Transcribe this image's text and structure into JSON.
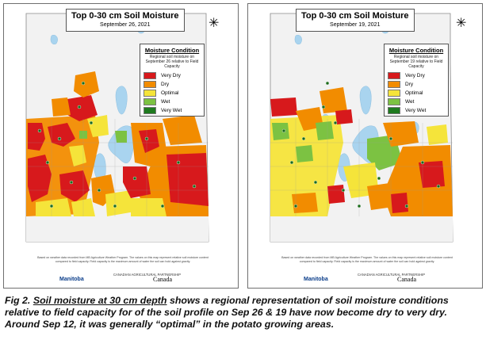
{
  "colors": {
    "very_dry": "#d7191c",
    "dry": "#f28c00",
    "optimal": "#f5e43a",
    "wet": "#7cc242",
    "very_wet": "#1e7a1e",
    "water": "#a9d4ef",
    "land": "#f2f2f2"
  },
  "maps": [
    {
      "title": "Top 0-30 cm Soil Moisture",
      "date": "September 26, 2021",
      "legend": {
        "heading": "Moisture Condition",
        "description": "Regional soil moisture on September 26 relative to Field Capacity",
        "items": [
          {
            "label": "Very Dry",
            "color": "#d7191c"
          },
          {
            "label": "Dry",
            "color": "#f28c00"
          },
          {
            "label": "Optimal",
            "color": "#f5e43a"
          },
          {
            "label": "Wet",
            "color": "#7cc242"
          },
          {
            "label": "Very Wet",
            "color": "#1e7a1e"
          }
        ]
      }
    },
    {
      "title": "Top 0-30 cm Soil Moisture",
      "date": "September 19, 2021",
      "legend": {
        "heading": "Moisture Condition",
        "description": "Regional soil moisture on September 19 relative to Field Capacity",
        "items": [
          {
            "label": "Very Dry",
            "color": "#d7191c"
          },
          {
            "label": "Dry",
            "color": "#f28c00"
          },
          {
            "label": "Optimal",
            "color": "#f5e43a"
          },
          {
            "label": "Wet",
            "color": "#7cc242"
          },
          {
            "label": "Very Wet",
            "color": "#1e7a1e"
          }
        ]
      }
    }
  ],
  "footer": {
    "fine_print": "Based on weather data recorded from MB Agriculture Weather Program. The values on this map represent relative soil moisture content compared to field capacity. Field capacity is the maximum amount of water the soil can hold against gravity.",
    "logo_manitoba": "Manitoba",
    "logo_partnership": "CANADIAN AGRICULTURAL PARTNERSHIP",
    "logo_canada": "Canada"
  },
  "caption": {
    "fig_label": "Fig 2.",
    "underlined": "Soil moisture at 30 cm depth",
    "rest": " shows a regional representation  of soil moisture conditions relative to field capacity for of the soil profile on Sep 26 & 19 have now become dry to very dry. Around Sep 12, it was generally “optimal” in the potato growing areas."
  }
}
